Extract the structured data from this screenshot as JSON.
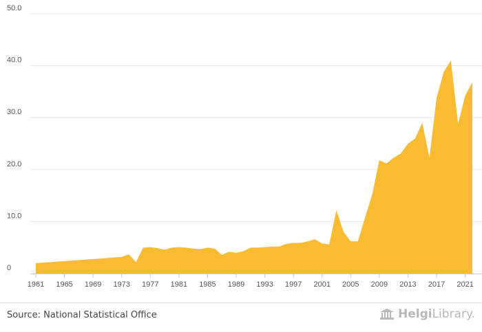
{
  "chart_data": {
    "type": "area",
    "title": "",
    "xlabel": "",
    "ylabel": "",
    "ylim": [
      0,
      50
    ],
    "xlim": [
      1961,
      2022
    ],
    "grid": true,
    "color": "#f9bb31",
    "yticks": [
      0,
      10,
      20,
      30,
      40,
      50
    ],
    "ytick_labels": [
      "0",
      "10.0",
      "20.0",
      "30.0",
      "40.0",
      "50.0"
    ],
    "xticks": [
      1961,
      1965,
      1969,
      1973,
      1977,
      1981,
      1985,
      1989,
      1993,
      1997,
      2001,
      2005,
      2009,
      2013,
      2017,
      2021
    ],
    "xtick_labels": [
      "1961",
      "1965",
      "1969",
      "1973",
      "1977",
      "1981",
      "1985",
      "1989",
      "1993",
      "1997",
      "2001",
      "2005",
      "2009",
      "2013",
      "2017",
      "2021"
    ],
    "x": [
      1961,
      1962,
      1963,
      1964,
      1965,
      1966,
      1967,
      1968,
      1969,
      1970,
      1971,
      1972,
      1973,
      1974,
      1975,
      1976,
      1977,
      1978,
      1979,
      1980,
      1981,
      1982,
      1983,
      1984,
      1985,
      1986,
      1987,
      1988,
      1989,
      1990,
      1991,
      1992,
      1993,
      1994,
      1995,
      1996,
      1997,
      1998,
      1999,
      2000,
      2001,
      2002,
      2003,
      2004,
      2005,
      2006,
      2007,
      2008,
      2009,
      2010,
      2011,
      2012,
      2013,
      2014,
      2015,
      2016,
      2017,
      2018,
      2019,
      2020,
      2021,
      2022
    ],
    "values": [
      2.0,
      2.1,
      2.2,
      2.3,
      2.4,
      2.5,
      2.6,
      2.7,
      2.8,
      2.9,
      3.0,
      3.1,
      3.2,
      3.7,
      2.2,
      5.0,
      5.1,
      4.9,
      4.6,
      5.0,
      5.1,
      5.0,
      4.8,
      4.7,
      5.0,
      4.8,
      3.6,
      4.2,
      4.0,
      4.3,
      5.0,
      5.0,
      5.1,
      5.2,
      5.2,
      5.7,
      5.9,
      5.9,
      6.2,
      6.6,
      5.8,
      5.6,
      12.2,
      8.0,
      6.2,
      6.2,
      10.8,
      15.2,
      21.8,
      21.2,
      22.3,
      23.1,
      25.0,
      26.0,
      29.0,
      22.3,
      33.8,
      38.8,
      41.0,
      28.8,
      34.3,
      36.8
    ]
  },
  "footer": {
    "source": "Source: National Statistical Office",
    "brand_part1": "Helgi",
    "brand_part2": "Library."
  }
}
